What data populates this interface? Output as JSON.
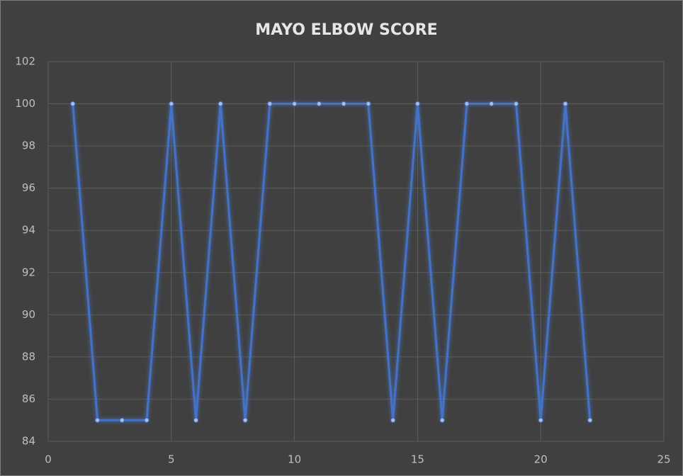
{
  "chart_data": {
    "type": "line",
    "title": "MAYO ELBOW SCORE",
    "x": [
      1,
      2,
      3,
      4,
      5,
      6,
      7,
      8,
      9,
      10,
      11,
      12,
      13,
      14,
      15,
      16,
      17,
      18,
      19,
      20,
      21,
      22
    ],
    "values": [
      100,
      85,
      85,
      85,
      100,
      85,
      100,
      85,
      100,
      100,
      100,
      100,
      100,
      85,
      100,
      85,
      100,
      100,
      100,
      85,
      100,
      85
    ],
    "color": "#4472c4",
    "xlim": [
      0,
      25
    ],
    "xticks": [
      0,
      5,
      10,
      15,
      20,
      25
    ],
    "ylim": [
      84,
      102
    ],
    "yticks": [
      84,
      86,
      88,
      90,
      92,
      94,
      96,
      98,
      100,
      102
    ],
    "grid": true
  }
}
